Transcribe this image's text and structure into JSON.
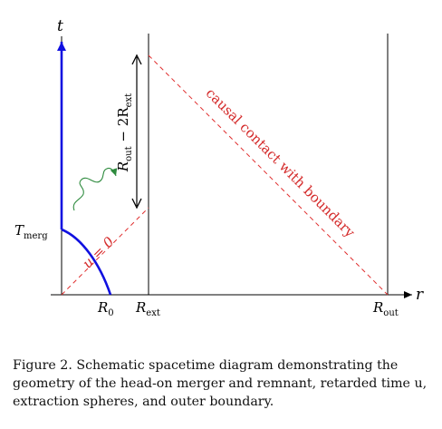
{
  "figure": {
    "labels": {
      "t_axis": "t",
      "r_axis": "r",
      "T_merg": "T",
      "T_merg_sub": "merg",
      "R0": "R",
      "R0_sub": "0",
      "R_ext": "R",
      "R_ext_sub": "ext",
      "R_out": "R",
      "R_out_sub": "out",
      "u0": "u = 0",
      "interval_main": "R",
      "interval_sub1": "out",
      "interval_mid": " − 2R",
      "interval_sub2": "ext",
      "causal": "causal contact with boundary"
    },
    "colors": {
      "axis": "#000000",
      "worldline": "#1010e0",
      "null_lines": "#e03030",
      "label_red": "#d42a2a",
      "wave": "#2e8b3e"
    }
  },
  "caption": {
    "label": "Figure 2.",
    "text": "Schematic spacetime diagram demonstrating the geometry of the head-on merger and remnant, retarded time u, extraction spheres, and outer boundary."
  }
}
